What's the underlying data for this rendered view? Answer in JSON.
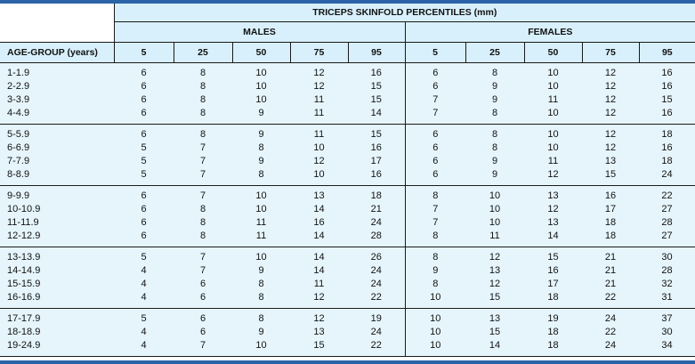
{
  "header": {
    "title": "TRICEPS SKINFOLD PERCENTILES (mm)",
    "males_label": "MALES",
    "females_label": "FEMALES",
    "age_label": "AGE-GROUP (years)",
    "percentiles": [
      "5",
      "25",
      "50",
      "75",
      "95"
    ]
  },
  "colors": {
    "header_bg": "#d8f0fb",
    "body_bg": "#e6f5fc",
    "accent_bar": "#2b63a8"
  },
  "groups": [
    {
      "rows": [
        {
          "age": "1-1.9",
          "m": [
            "6",
            "8",
            "10",
            "12",
            "16"
          ],
          "f": [
            "6",
            "8",
            "10",
            "12",
            "16"
          ]
        },
        {
          "age": "2-2.9",
          "m": [
            "6",
            "8",
            "10",
            "12",
            "15"
          ],
          "f": [
            "6",
            "9",
            "10",
            "12",
            "16"
          ]
        },
        {
          "age": "3-3.9",
          "m": [
            "6",
            "8",
            "10",
            "11",
            "15"
          ],
          "f": [
            "7",
            "9",
            "11",
            "12",
            "15"
          ]
        },
        {
          "age": "4-4.9",
          "m": [
            "6",
            "8",
            "9",
            "11",
            "14"
          ],
          "f": [
            "7",
            "8",
            "10",
            "12",
            "16"
          ]
        }
      ]
    },
    {
      "rows": [
        {
          "age": "5-5.9",
          "m": [
            "6",
            "8",
            "9",
            "11",
            "15"
          ],
          "f": [
            "6",
            "8",
            "10",
            "12",
            "18"
          ]
        },
        {
          "age": "6-6.9",
          "m": [
            "5",
            "7",
            "8",
            "10",
            "16"
          ],
          "f": [
            "6",
            "8",
            "10",
            "12",
            "16"
          ]
        },
        {
          "age": "7-7.9",
          "m": [
            "5",
            "7",
            "9",
            "12",
            "17"
          ],
          "f": [
            "6",
            "9",
            "11",
            "13",
            "18"
          ]
        },
        {
          "age": "8-8.9",
          "m": [
            "5",
            "7",
            "8",
            "10",
            "16"
          ],
          "f": [
            "6",
            "9",
            "12",
            "15",
            "24"
          ]
        }
      ]
    },
    {
      "rows": [
        {
          "age": "9-9.9",
          "m": [
            "6",
            "7",
            "10",
            "13",
            "18"
          ],
          "f": [
            "8",
            "10",
            "13",
            "16",
            "22"
          ]
        },
        {
          "age": "10-10.9",
          "m": [
            "6",
            "8",
            "10",
            "14",
            "21"
          ],
          "f": [
            "7",
            "10",
            "12",
            "17",
            "27"
          ]
        },
        {
          "age": "11-11.9",
          "m": [
            "6",
            "8",
            "11",
            "16",
            "24"
          ],
          "f": [
            "7",
            "10",
            "13",
            "18",
            "28"
          ]
        },
        {
          "age": "12-12.9",
          "m": [
            "6",
            "8",
            "11",
            "14",
            "28"
          ],
          "f": [
            "8",
            "11",
            "14",
            "18",
            "27"
          ]
        }
      ]
    },
    {
      "rows": [
        {
          "age": "13-13.9",
          "m": [
            "5",
            "7",
            "10",
            "14",
            "26"
          ],
          "f": [
            "8",
            "12",
            "15",
            "21",
            "30"
          ]
        },
        {
          "age": "14-14.9",
          "m": [
            "4",
            "7",
            "9",
            "14",
            "24"
          ],
          "f": [
            "9",
            "13",
            "16",
            "21",
            "28"
          ]
        },
        {
          "age": "15-15.9",
          "m": [
            "4",
            "6",
            "8",
            "11",
            "24"
          ],
          "f": [
            "8",
            "12",
            "17",
            "21",
            "32"
          ]
        },
        {
          "age": "16-16.9",
          "m": [
            "4",
            "6",
            "8",
            "12",
            "22"
          ],
          "f": [
            "10",
            "15",
            "18",
            "22",
            "31"
          ]
        }
      ]
    },
    {
      "rows": [
        {
          "age": "17-17.9",
          "m": [
            "5",
            "6",
            "8",
            "12",
            "19"
          ],
          "f": [
            "10",
            "13",
            "19",
            "24",
            "37"
          ]
        },
        {
          "age": "18-18.9",
          "m": [
            "4",
            "6",
            "9",
            "13",
            "24"
          ],
          "f": [
            "10",
            "15",
            "18",
            "22",
            "30"
          ]
        },
        {
          "age": "19-24.9",
          "m": [
            "4",
            "7",
            "10",
            "15",
            "22"
          ],
          "f": [
            "10",
            "14",
            "18",
            "24",
            "34"
          ]
        }
      ]
    }
  ]
}
